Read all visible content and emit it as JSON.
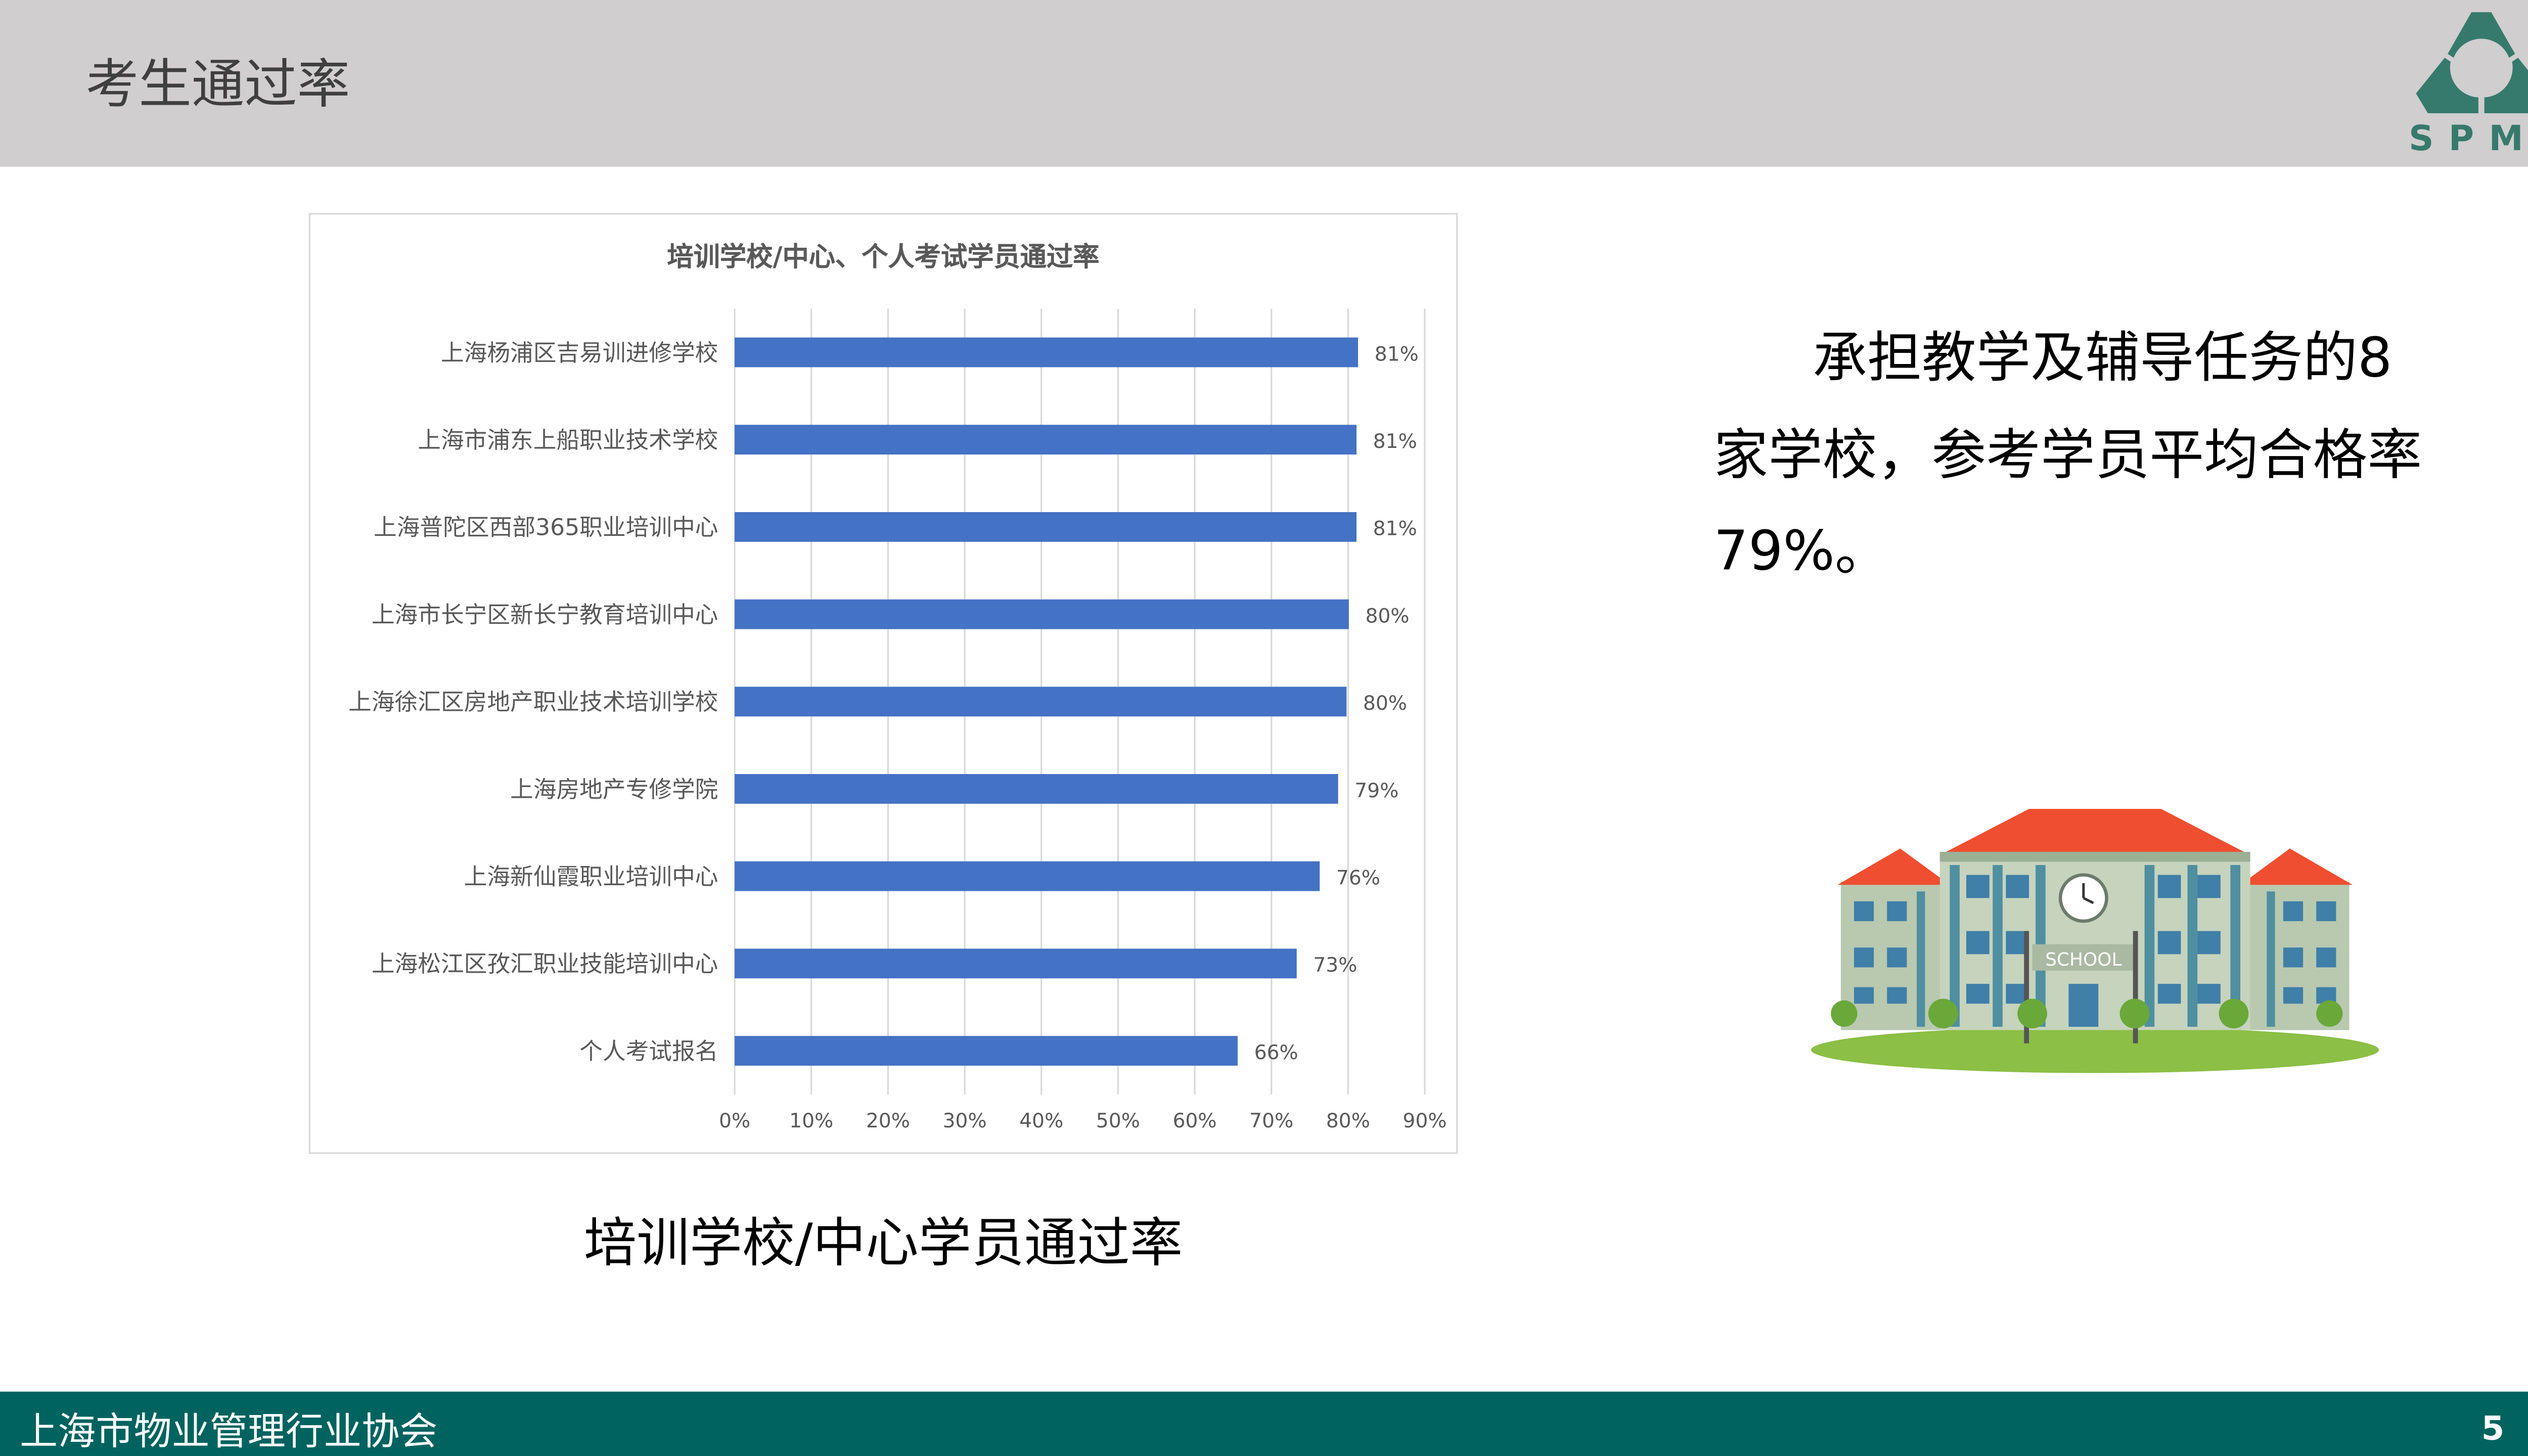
{
  "header": {
    "title": "考生通过率",
    "logo_text": "SPM"
  },
  "chart_data": {
    "type": "bar",
    "orientation": "horizontal",
    "title": "培训学校/中心、个人考试学员通过率",
    "categories": [
      "上海杨浦区吉易训进修学校",
      "上海市浦东上船职业技术学校",
      "上海普陀区西部365职业培训中心",
      "上海市长宁区新长宁教育培训中心",
      "上海徐汇区房地产职业技术培训学校",
      "上海房地产专修学院",
      "上海新仙霞职业培训中心",
      "上海松江区孜汇职业技能培训中心",
      "个人考试报名"
    ],
    "values": [
      81.3,
      81.1,
      81.1,
      80.1,
      79.8,
      78.7,
      76.3,
      73.3,
      65.6
    ],
    "data_labels": [
      "81%",
      "81%",
      "81%",
      "80%",
      "80%",
      "79%",
      "76%",
      "73%",
      "66%"
    ],
    "x_ticks": [
      "0%",
      "10%",
      "20%",
      "30%",
      "40%",
      "50%",
      "60%",
      "70%",
      "80%",
      "90%"
    ],
    "xlim": [
      0,
      90
    ],
    "grid": true,
    "bar_color": "#4472c4"
  },
  "caption": "培训学校/中心学员通过率",
  "summary": {
    "lines": [
      "承担教学及辅导任务的8",
      "家学校，参考学员平均合格率",
      "79%。"
    ]
  },
  "illustration": {
    "sign": "SCHOOL"
  },
  "footer": {
    "org": "上海市物业管理行业协会",
    "page": "5"
  },
  "colors": {
    "header_bg": "#d0cece",
    "footer_bg": "#00635f",
    "logo": "#367a6c"
  }
}
